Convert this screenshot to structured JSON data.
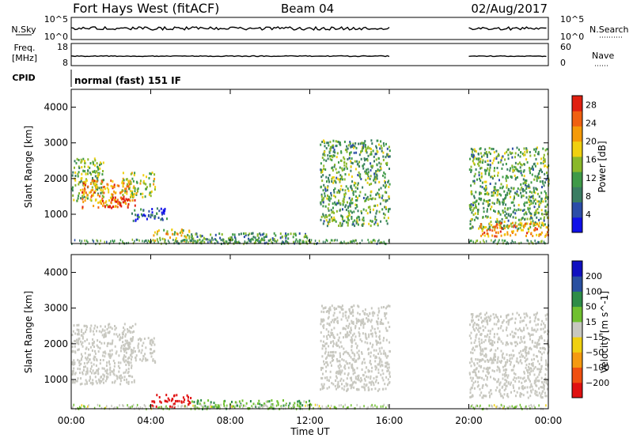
{
  "header": {
    "station": "Fort Hays West (fitACF)",
    "beam": "Beam 04",
    "date": "02/Aug/2017"
  },
  "strip_labels": {
    "nsky": "N.Sky",
    "nsearch": "N.Search",
    "freq": "Freq.",
    "freq_unit": "[MHz]",
    "nave": "Nave",
    "cpid": "CPID",
    "cpid_text": "normal (fast) 151 IF",
    "noise_top": "10^5",
    "noise_bottom": "10^0",
    "freq_top": "18",
    "freq_bottom": "8",
    "nave_top": "60",
    "nave_bottom": "0"
  },
  "colors": {
    "power_scale": [
      "#1010e8",
      "#2c4da8",
      "#3a7d62",
      "#3f9a48",
      "#8ab82a",
      "#f0d010",
      "#f59a08",
      "#f06010",
      "#e02010"
    ],
    "velocity_scale": [
      "#e01010",
      "#f05010",
      "#f59a10",
      "#f0d010",
      "#c8c8c0",
      "#70c030",
      "#2e8c48",
      "#2a50a0",
      "#1010c0"
    ]
  },
  "chart_data": [
    {
      "type": "heatmap",
      "name": "power",
      "xlabel": "",
      "ylabel": "Slant Range [km]",
      "yticks": [
        1000,
        2000,
        3000,
        4000
      ],
      "xticks": [
        "00:00",
        "04:00",
        "08:00",
        "12:00",
        "16:00",
        "20:00",
        "00:00"
      ],
      "xlim_hours": [
        0,
        24
      ],
      "ylim_km": [
        180,
        4500
      ],
      "colorbar_label": "Power [dB]",
      "colorbar_ticks": [
        4,
        8,
        12,
        16,
        20,
        24,
        28
      ],
      "colorbar_range": [
        0,
        30
      ],
      "data_gap_hours": [
        16,
        20
      ],
      "regions": [
        {
          "t0": 0.0,
          "t1": 1.6,
          "r0": 1400,
          "r1": 2600,
          "level": 14
        },
        {
          "t0": 0.5,
          "t1": 3.0,
          "r0": 1200,
          "r1": 2000,
          "level": 22
        },
        {
          "t0": 1.8,
          "t1": 3.2,
          "r0": 1200,
          "r1": 1500,
          "level": 28
        },
        {
          "t0": 2.5,
          "t1": 4.2,
          "r0": 1500,
          "r1": 2200,
          "level": 16
        },
        {
          "t0": 3.0,
          "t1": 4.8,
          "r0": 800,
          "r1": 1200,
          "level": 6
        },
        {
          "t0": 4.0,
          "t1": 6.0,
          "r0": 250,
          "r1": 600,
          "level": 18
        },
        {
          "t0": 6.0,
          "t1": 12.0,
          "r0": 200,
          "r1": 500,
          "level": 10
        },
        {
          "t0": 12.5,
          "t1": 16.0,
          "r0": 700,
          "r1": 3100,
          "level": 12
        },
        {
          "t0": 20.0,
          "t1": 24.0,
          "r0": 600,
          "r1": 2900,
          "level": 12
        },
        {
          "t0": 20.5,
          "t1": 24.0,
          "r0": 400,
          "r1": 800,
          "level": 22
        }
      ]
    },
    {
      "type": "heatmap",
      "name": "velocity",
      "xlabel": "Time UT",
      "ylabel": "Slant Range [km]",
      "yticks": [
        1000,
        2000,
        3000,
        4000
      ],
      "xticks": [
        "00:00",
        "04:00",
        "08:00",
        "12:00",
        "16:00",
        "20:00",
        "00:00"
      ],
      "xlim_hours": [
        0,
        24
      ],
      "ylim_km": [
        180,
        4500
      ],
      "colorbar_label": "Velocity [m s^-1]",
      "colorbar_ticks": [
        -200,
        -100,
        -50,
        -15,
        15,
        50,
        100,
        200
      ],
      "data_gap_hours": [
        16,
        20
      ],
      "regions": [
        {
          "t0": 0.0,
          "t1": 3.2,
          "r0": 900,
          "r1": 2600,
          "level": 0
        },
        {
          "t0": 2.5,
          "t1": 4.2,
          "r0": 1500,
          "r1": 2200,
          "level": 0
        },
        {
          "t0": 4.0,
          "t1": 6.0,
          "r0": 250,
          "r1": 600,
          "level": -180
        },
        {
          "t0": 6.0,
          "t1": 12.0,
          "r0": 200,
          "r1": 450,
          "level": 40
        },
        {
          "t0": 12.5,
          "t1": 16.0,
          "r0": 700,
          "r1": 3100,
          "level": 0
        },
        {
          "t0": 20.0,
          "t1": 24.0,
          "r0": 500,
          "r1": 2900,
          "level": 0
        }
      ]
    }
  ]
}
